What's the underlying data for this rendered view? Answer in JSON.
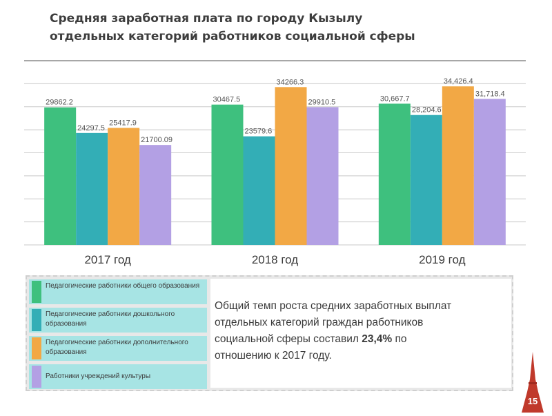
{
  "title_line1": "Средняя заработная плата по городу Кызылу",
  "title_line2": "отдельных категорий работников социальной сферы",
  "chart_data": {
    "type": "bar",
    "categories": [
      "2017 год",
      "2018 год",
      "2019 год"
    ],
    "ylim": [
      0,
      40000
    ],
    "grid": true,
    "series": [
      {
        "name": "Педагогические работники общего образования",
        "color": "#3ec07e",
        "values": [
          29862.2,
          30467.5,
          30667.7
        ],
        "labels": [
          "29862.2",
          "30467.5",
          "30,667.7"
        ]
      },
      {
        "name": "Педагогические работники дошкольного образования",
        "color": "#33aeb6",
        "values": [
          24297.5,
          23579.6,
          28204.6
        ],
        "labels": [
          "24297.5",
          "23579.6",
          "28,204.6"
        ]
      },
      {
        "name": "Педагогические работники дополнительного образования",
        "color": "#f2a845",
        "values": [
          25417.9,
          34266.3,
          34426.4
        ],
        "labels": [
          "25417.9",
          "34266.3",
          "34,426.4"
        ]
      },
      {
        "name": "Работники учреждений культуры",
        "color": "#b3a0e4",
        "values": [
          21700.09,
          29910.5,
          31718.4
        ],
        "labels": [
          "21700.09",
          "29910.5",
          "31,718.4"
        ]
      }
    ]
  },
  "legend": [
    {
      "label": "Педагогические работники общего образования",
      "color": "#3ec07e"
    },
    {
      "label": "Педагогические работники дошкольного образования",
      "color": "#33aeb6"
    },
    {
      "label": "Педагогические работники дополнительного образования",
      "color": "#f2a845"
    },
    {
      "label": "Работники учреждений культуры",
      "color": "#b3a0e4"
    }
  ],
  "summary": {
    "line1": "Общий темп роста средних заработных выплат",
    "line2": "отдельных категорий граждан работников",
    "line3_prefix": "социальной сферы  составил ",
    "line3_highlight": "23,4%",
    "line3_suffix": " по",
    "line4": "отношению к 2017 году."
  },
  "page_number": "15",
  "colors": {
    "accent": "#c0392b",
    "legend_bg": "#a7e4e4"
  }
}
